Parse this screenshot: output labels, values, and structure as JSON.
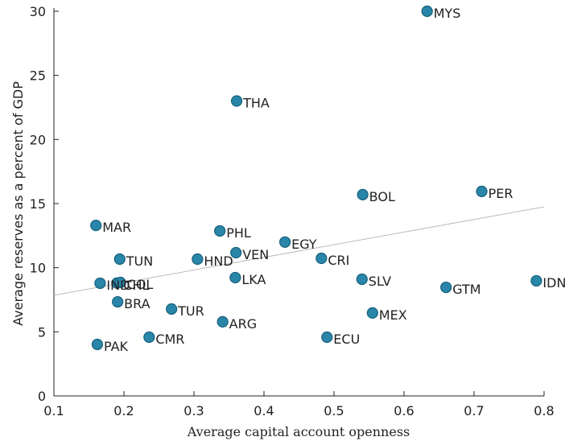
{
  "chart_data": {
    "type": "scatter",
    "xlabel": "Average capital account openness",
    "ylabel": "Average reserves as a percent of GDP",
    "labels": [
      "MYS",
      "THA",
      "BOL",
      "PER",
      "MAR",
      "PHL",
      "EGY",
      "VEN",
      "TUN",
      "HND",
      "CRI",
      "LKA",
      "SLV",
      "IDN",
      "GTM",
      "IND",
      "CHL",
      "COL",
      "BRA",
      "TUR",
      "MEX",
      "ARG",
      "CMR",
      "ECU",
      "PAK"
    ],
    "x": [
      0.633,
      0.361,
      0.541,
      0.711,
      0.16,
      0.337,
      0.43,
      0.36,
      0.194,
      0.305,
      0.482,
      0.359,
      0.54,
      0.789,
      0.66,
      0.166,
      0.19,
      0.195,
      0.191,
      0.268,
      0.555,
      0.341,
      0.236,
      0.49,
      0.162
    ],
    "values": [
      30.0,
      23.0,
      15.7,
      15.95,
      13.3,
      12.87,
      12.0,
      11.17,
      10.67,
      10.67,
      10.73,
      9.23,
      9.1,
      8.98,
      8.47,
      8.79,
      8.8,
      8.85,
      7.34,
      6.78,
      6.47,
      5.78,
      4.58,
      4.58,
      4.02
    ],
    "color": "#2a86a8",
    "fit": {
      "x": [
        0.1,
        0.8
      ],
      "values": [
        7.85,
        14.75
      ],
      "color": "#bbbbbb"
    },
    "xlim": [
      0.1,
      0.8
    ],
    "xticks": [
      0.1,
      0.2,
      0.3,
      0.4,
      0.5,
      0.6,
      0.7,
      0.8
    ],
    "ylim": [
      0,
      30
    ],
    "yticks": [
      0,
      5,
      10,
      15,
      20,
      25,
      30
    ]
  }
}
